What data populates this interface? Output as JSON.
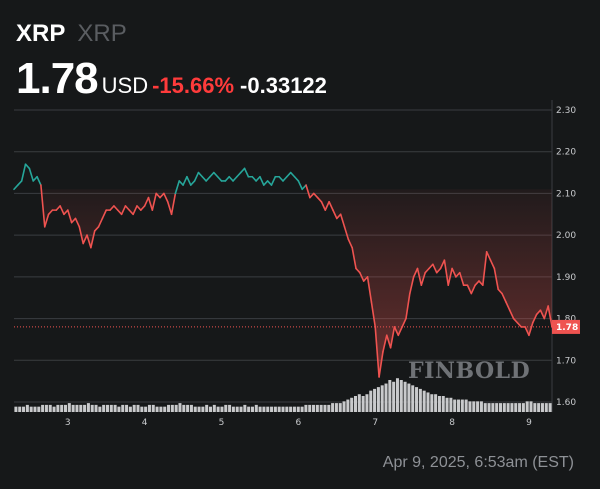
{
  "header": {
    "symbol": "XRP",
    "name": "XRP",
    "price": "1.78",
    "currency": "USD",
    "change_pct": "-15.66%",
    "change_abs": "-0.33122"
  },
  "timestamp": "Apr 9, 2025, 6:53am (EST)",
  "watermark": "FINBOLD",
  "last_price_label": "1.78",
  "colors": {
    "background": "#161819",
    "up": "#26a69a",
    "down": "#ef5350",
    "grid": "#3a3d41",
    "axis_text": "#c8cacd",
    "volume": "#c9cacc"
  },
  "chart_data": {
    "type": "line",
    "ylim": [
      1.6,
      2.3
    ],
    "y_ticks": [
      "1.60",
      "1.70",
      "1.80",
      "1.90",
      "2.00",
      "2.10",
      "2.20",
      "2.30"
    ],
    "x_ticks": [
      "3",
      "4",
      "5",
      "6",
      "7",
      "8",
      "9"
    ],
    "xlim": [
      2.3,
      9.3
    ],
    "grid": "horizontal",
    "reference_price": 2.11,
    "last_price": 1.78,
    "series": [
      {
        "x": [
          2.3,
          2.35,
          2.4,
          2.45,
          2.5,
          2.55,
          2.6,
          2.65,
          2.7,
          2.75,
          2.8,
          2.85,
          2.9,
          2.95,
          3.0,
          3.05,
          3.1,
          3.15,
          3.2,
          3.25,
          3.3,
          3.35,
          3.4,
          3.45,
          3.5,
          3.55,
          3.6,
          3.65,
          3.7,
          3.75,
          3.8,
          3.85,
          3.9,
          3.95,
          4.0,
          4.05,
          4.1,
          4.15,
          4.2,
          4.25,
          4.3,
          4.35,
          4.4,
          4.45,
          4.5,
          4.55,
          4.6,
          4.65,
          4.7,
          4.75,
          4.8,
          4.85,
          4.9,
          4.95,
          5.0,
          5.05,
          5.1,
          5.15,
          5.2,
          5.25,
          5.3,
          5.35,
          5.4,
          5.45,
          5.5,
          5.55,
          5.6,
          5.65,
          5.7,
          5.75,
          5.8,
          5.85,
          5.9,
          5.95,
          6.0,
          6.05,
          6.1,
          6.15,
          6.2,
          6.25,
          6.3,
          6.35,
          6.4,
          6.45,
          6.5,
          6.55,
          6.6,
          6.65,
          6.7,
          6.75,
          6.8,
          6.85,
          6.9,
          6.95,
          7.0,
          7.05,
          7.1,
          7.15,
          7.2,
          7.25,
          7.3,
          7.35,
          7.4,
          7.45,
          7.5,
          7.55,
          7.6,
          7.65,
          7.7,
          7.75,
          7.8,
          7.85,
          7.9,
          7.95,
          8.0,
          8.05,
          8.1,
          8.15,
          8.2,
          8.25,
          8.3,
          8.35,
          8.4,
          8.45,
          8.5,
          8.55,
          8.6,
          8.65,
          8.7,
          8.75,
          8.8,
          8.85,
          8.9,
          8.95,
          9.0,
          9.05,
          9.1,
          9.15,
          9.2,
          9.25,
          9.3
        ],
        "y": [
          2.11,
          2.12,
          2.13,
          2.17,
          2.16,
          2.13,
          2.14,
          2.12,
          2.02,
          2.05,
          2.06,
          2.06,
          2.07,
          2.05,
          2.06,
          2.03,
          2.04,
          2.02,
          1.98,
          2.0,
          1.97,
          2.01,
          2.02,
          2.04,
          2.06,
          2.06,
          2.07,
          2.06,
          2.05,
          2.07,
          2.06,
          2.05,
          2.07,
          2.06,
          2.07,
          2.09,
          2.06,
          2.1,
          2.09,
          2.1,
          2.08,
          2.05,
          2.1,
          2.13,
          2.12,
          2.14,
          2.12,
          2.13,
          2.15,
          2.14,
          2.13,
          2.14,
          2.15,
          2.14,
          2.13,
          2.13,
          2.14,
          2.13,
          2.14,
          2.15,
          2.16,
          2.14,
          2.14,
          2.13,
          2.14,
          2.12,
          2.13,
          2.12,
          2.14,
          2.14,
          2.13,
          2.14,
          2.15,
          2.14,
          2.13,
          2.11,
          2.12,
          2.09,
          2.1,
          2.09,
          2.08,
          2.06,
          2.08,
          2.06,
          2.04,
          2.05,
          2.02,
          1.99,
          1.97,
          1.92,
          1.91,
          1.89,
          1.9,
          1.84,
          1.78,
          1.66,
          1.72,
          1.76,
          1.73,
          1.78,
          1.76,
          1.78,
          1.8,
          1.86,
          1.9,
          1.92,
          1.88,
          1.91,
          1.92,
          1.93,
          1.91,
          1.92,
          1.94,
          1.88,
          1.92,
          1.9,
          1.91,
          1.88,
          1.88,
          1.86,
          1.88,
          1.89,
          1.88,
          1.96,
          1.94,
          1.92,
          1.87,
          1.86,
          1.84,
          1.82,
          1.8,
          1.79,
          1.78,
          1.78,
          1.76,
          1.79,
          1.81,
          1.82,
          1.8,
          1.83,
          1.78
        ]
      }
    ],
    "volume": [
      3,
      3,
      3,
      4,
      3,
      3,
      3,
      4,
      4,
      4,
      3,
      4,
      4,
      4,
      5,
      4,
      4,
      4,
      4,
      5,
      4,
      4,
      3,
      4,
      4,
      4,
      4,
      3,
      4,
      4,
      3,
      4,
      4,
      3,
      3,
      4,
      4,
      3,
      3,
      3,
      4,
      4,
      4,
      5,
      4,
      4,
      4,
      3,
      3,
      3,
      4,
      3,
      4,
      3,
      3,
      4,
      4,
      3,
      3,
      3,
      4,
      3,
      3,
      4,
      3,
      3,
      3,
      3,
      3,
      3,
      3,
      3,
      3,
      3,
      3,
      3,
      4,
      4,
      4,
      4,
      4,
      4,
      4,
      5,
      5,
      5,
      6,
      7,
      8,
      9,
      10,
      9,
      10,
      12,
      13,
      14,
      15,
      16,
      18,
      17,
      19,
      18,
      17,
      16,
      15,
      14,
      13,
      12,
      11,
      10,
      10,
      9,
      9,
      8,
      8,
      7,
      7,
      7,
      7,
      6,
      6,
      6,
      6,
      5,
      5,
      5,
      5,
      5,
      5,
      5,
      5,
      5,
      5,
      5,
      6,
      6,
      5,
      5,
      5,
      5,
      5
    ]
  }
}
